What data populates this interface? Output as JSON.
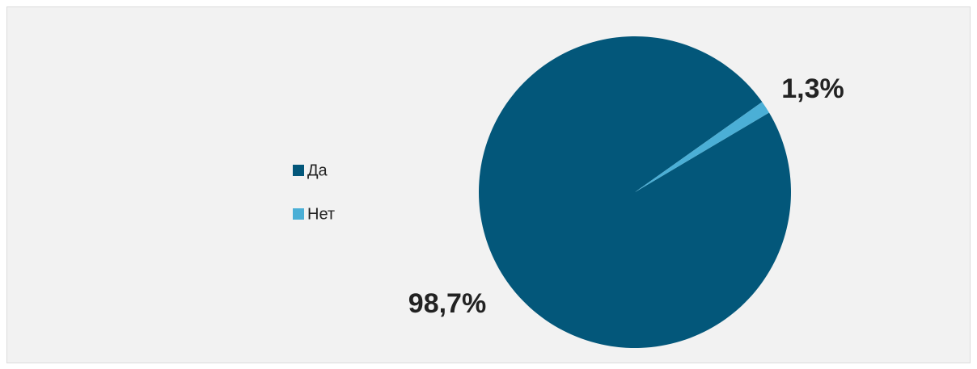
{
  "chart_data": {
    "type": "pie",
    "categories": [
      "Да",
      "Нет"
    ],
    "values": [
      98.7,
      1.3
    ],
    "value_labels": [
      "98,7%",
      "1,3%"
    ],
    "colors": [
      "#03577a",
      "#4bafd6"
    ],
    "legend": "left"
  }
}
